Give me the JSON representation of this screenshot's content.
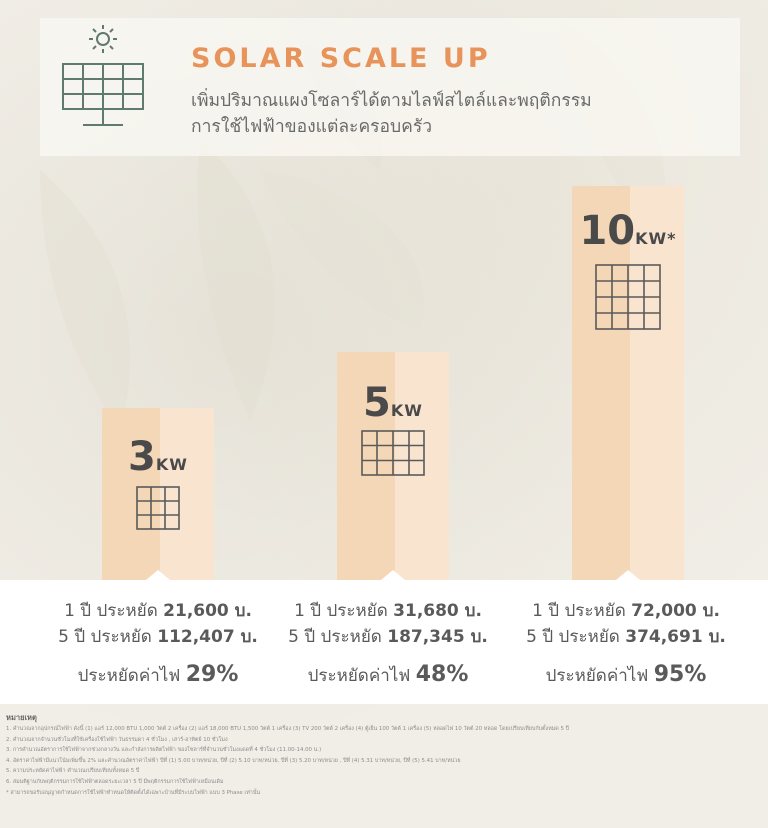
{
  "header": {
    "title": "SOLAR SCALE UP",
    "subtitle_line1": "เพิ่มปริมาณแผงโซลาร์ได้ตามไลฟ์สไตล์และพฤติกรรม",
    "subtitle_line2": "การใช้ไฟฟ้าของแต่ละครอบครัว"
  },
  "plans": [
    {
      "size": "3",
      "unit": "KW",
      "year1": "1 ปี ประหยัด",
      "year1_value": "21,600 บ.",
      "year5": "5 ปี ประหยัด",
      "year5_value": "112,407 บ.",
      "saving_label": "ประหยัดค่าไฟ",
      "saving_value": "29%"
    },
    {
      "size": "5",
      "unit": "KW",
      "year1": "1 ปี ประหยัด",
      "year1_value": "31,680 บ.",
      "year5": "5 ปี ประหยัด",
      "year5_value": "187,345 บ.",
      "saving_label": "ประหยัดค่าไฟ",
      "saving_value": "48%"
    },
    {
      "size": "10",
      "unit": "KW*",
      "year1": "1 ปี ประหยัด",
      "year1_value": "72,000 บ.",
      "year5": "5 ปี ประหยัด",
      "year5_value": "374,691 บ.",
      "saving_label": "ประหยัดค่าไฟ",
      "saving_value": "95%"
    }
  ],
  "notes": {
    "heading": "หมายเหตุ",
    "items": [
      "1. คำนวณจากอุปกรณ์ไฟฟ้า ดังนี้ (1) แอร์ 12,000 BTU 1,000 วัตต์ 2 เครื่อง (2) แอร์ 18,000 BTU 1,500 วัตต์ 1 เครื่อง (3) TV 200 วัตต์ 2 เครื่อง (4) ตู้เย็น 100 วัตต์ 1 เครื่อง (5) หลอดไฟ 10 วัตต์ 20 หลอด โดยเปรียบเทียบกับตั้งหมด 5 ปี",
      "2. คำนวณจากจำนวนชั่วโมงที่ใช้เครื่องใช้ไฟฟ้า วันธรรมดา 4 ชั่วโมง , เสาร์-อาทิตย์ 10 ชั่วโมง",
      "3. การคำนวณอัตราการใช้ไฟฟ้าจากช่วงกลางวัน และกำลังการผลิตไฟฟ้า ของโซลาร์ที่จำนวนชั่วโมงแดดที่ 4 ชั่วโมง (11.00-14.00 น.)",
      "4. อัตราค่าไฟฟ้ามีแนวโน้มเพิ่มขึ้น 2% และคำนวณอัตราค่าไฟฟ้า ปีที่ (1) 5.00 บาท/หน่วย, ปีที่ (2) 5.10 บาท/หน่วย, ปีที่ (3) 5.20 บาท/หน่วย , ปีที่ (4) 5.31 บาท/หน่วย, ปีที่ (5) 5.41 บาท/หน่วย",
      "5. ความประหยัดค่าไฟฟ้า คำนวณเปรียบเทียบทั้งหมด 5 ปี",
      "6. สมมติฐานกับพฤติกรรมการใช้ไฟฟ้าตลอดระยะเวลา 5 ปี มีพฤติกรรมการใช้ไฟฟ้าเหมือนเดิม",
      "* สามารถขอรับอนุญาตกำหนดการใช้ไฟฟ้าทำหนดให้ติดตั้งได้เฉพาะบ้านที่มีระบบไฟฟ้า แบบ 3 Phase เท่านั้น"
    ]
  },
  "colors": {
    "title": "#e7935a",
    "bar_dark": "#f4d7b6",
    "bar_light": "#f9e5cf",
    "panel_line": "#5a5a5a",
    "icon": "#5f7a6e"
  }
}
